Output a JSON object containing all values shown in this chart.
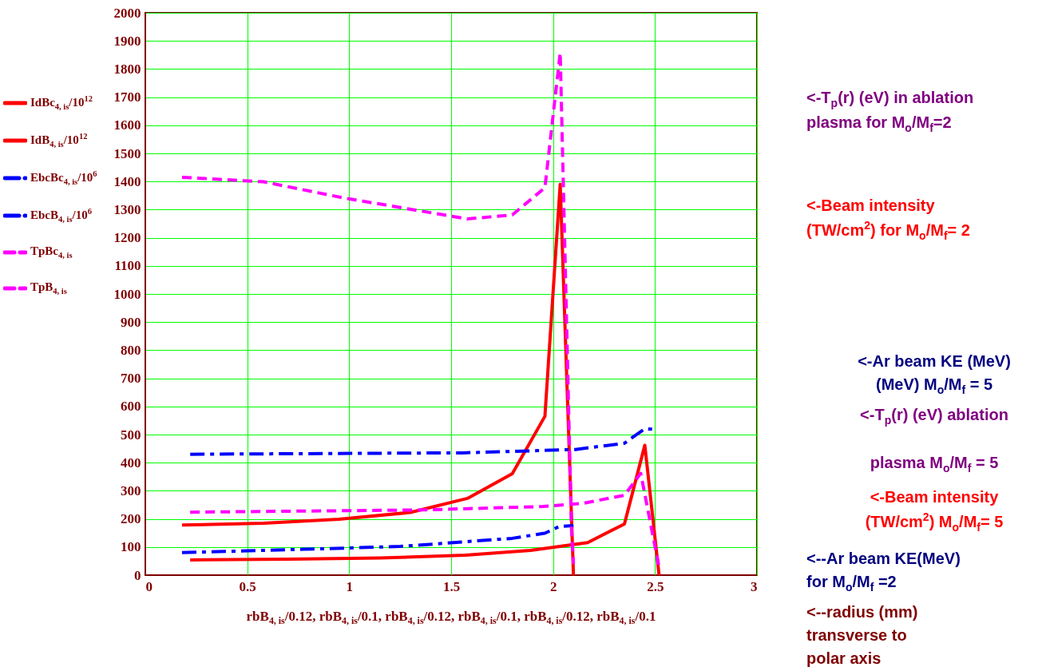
{
  "chart_data": {
    "type": "line",
    "xlabel": "rbB$_{4, is}$/0.12, rbB$_{4, is}$/0.1, rbB$_{4, is}$/0.12, rbB$_{4, is}$/0.1, rbB$_{4, is}$/0.12, rbB$_{4, is}$/0.1",
    "xlim": [
      0,
      3
    ],
    "xticks": [
      0,
      0.5,
      1,
      1.5,
      2,
      2.5,
      3
    ],
    "ylim": [
      0,
      2000
    ],
    "yticks": [
      0,
      100,
      200,
      300,
      400,
      500,
      600,
      700,
      800,
      900,
      1000,
      1100,
      1200,
      1300,
      1400,
      1500,
      1600,
      1700,
      1800,
      1900,
      2000
    ],
    "grid": true,
    "legend": "left",
    "marker": "none",
    "series": [
      {
        "name": "IdBc$_{4, is}$/10$^{12}$",
        "color": "#ff0000",
        "line_style": "solid",
        "x": [
          0.18,
          0.58,
          0.95,
          1.3,
          1.58,
          1.8,
          1.96,
          2.035,
          2.1
        ],
        "values": [
          178,
          185,
          199,
          223,
          273,
          361,
          565,
          1390,
          0
        ]
      },
      {
        "name": "IdB$_{4, is}$/10$^{12}$",
        "color": "#ff0000",
        "line_style": "solid",
        "x": [
          0.22,
          0.7,
          1.15,
          1.57,
          1.89,
          2.17,
          2.35,
          2.45,
          2.52
        ],
        "values": [
          54,
          57,
          61,
          71,
          88,
          116,
          182,
          462,
          0
        ]
      },
      {
        "name": "EbcBc$_{4, is}$/10$^{6}$",
        "color": "#0000ff",
        "line_style": "dashdot",
        "x": [
          0.18,
          0.78,
          1.25,
          1.8,
          1.96,
          2.03,
          2.1
        ],
        "values": [
          80,
          92,
          102,
          131,
          149,
          173,
          176
        ]
      },
      {
        "name": "EbcB$_{4, is}$/10$^{6}$",
        "color": "#0000ff",
        "line_style": "dashdot",
        "x": [
          0.22,
          1.56,
          2.11,
          2.35,
          2.45,
          2.5
        ],
        "values": [
          430,
          435,
          447,
          469,
          521,
          518
        ]
      },
      {
        "name": "TpBc$_{4, is}$",
        "color": "#ff00ff",
        "line_style": "dashed",
        "x": [
          0.18,
          0.48,
          0.58,
          0.97,
          1.58,
          1.8,
          1.96,
          2.035,
          2.09,
          2.1
        ],
        "values": [
          1415,
          1403,
          1399,
          1342,
          1267,
          1281,
          1378,
          1858,
          170,
          40
        ]
      },
      {
        "name": "TpB$_{4, is}$",
        "color": "#ff00ff",
        "line_style": "dashed",
        "x": [
          0.22,
          1.36,
          1.95,
          2.15,
          2.35,
          2.43,
          2.52
        ],
        "values": [
          224,
          232,
          244,
          256,
          284,
          362,
          28
        ]
      }
    ],
    "annotations": [
      "<-T$_{p}$(r) (eV) in ablation\nplasma for M$_{o}$/M$_{f}$=2",
      "<-Beam intensity\n(TW/cm$^{2}$) for M$_{o}$/M$_{f}$= 2",
      "<-Ar beam KE (MeV)\n(MeV) M$_{o}$/M$_{f}$ = 5",
      "<-T$_{p}$(r) (eV) ablation\n\nplasma  M$_{o}$/M$_{f}$ = 5",
      "<-Beam intensity\n(TW/cm$^{2}$) M$_{o}$/M$_{f}$= 5",
      "<--Ar beam KE(MeV)\nfor M$_{o}$/M$_{f}$ =2",
      "<--radius (mm)\ntransverse to\npolar axis"
    ]
  }
}
